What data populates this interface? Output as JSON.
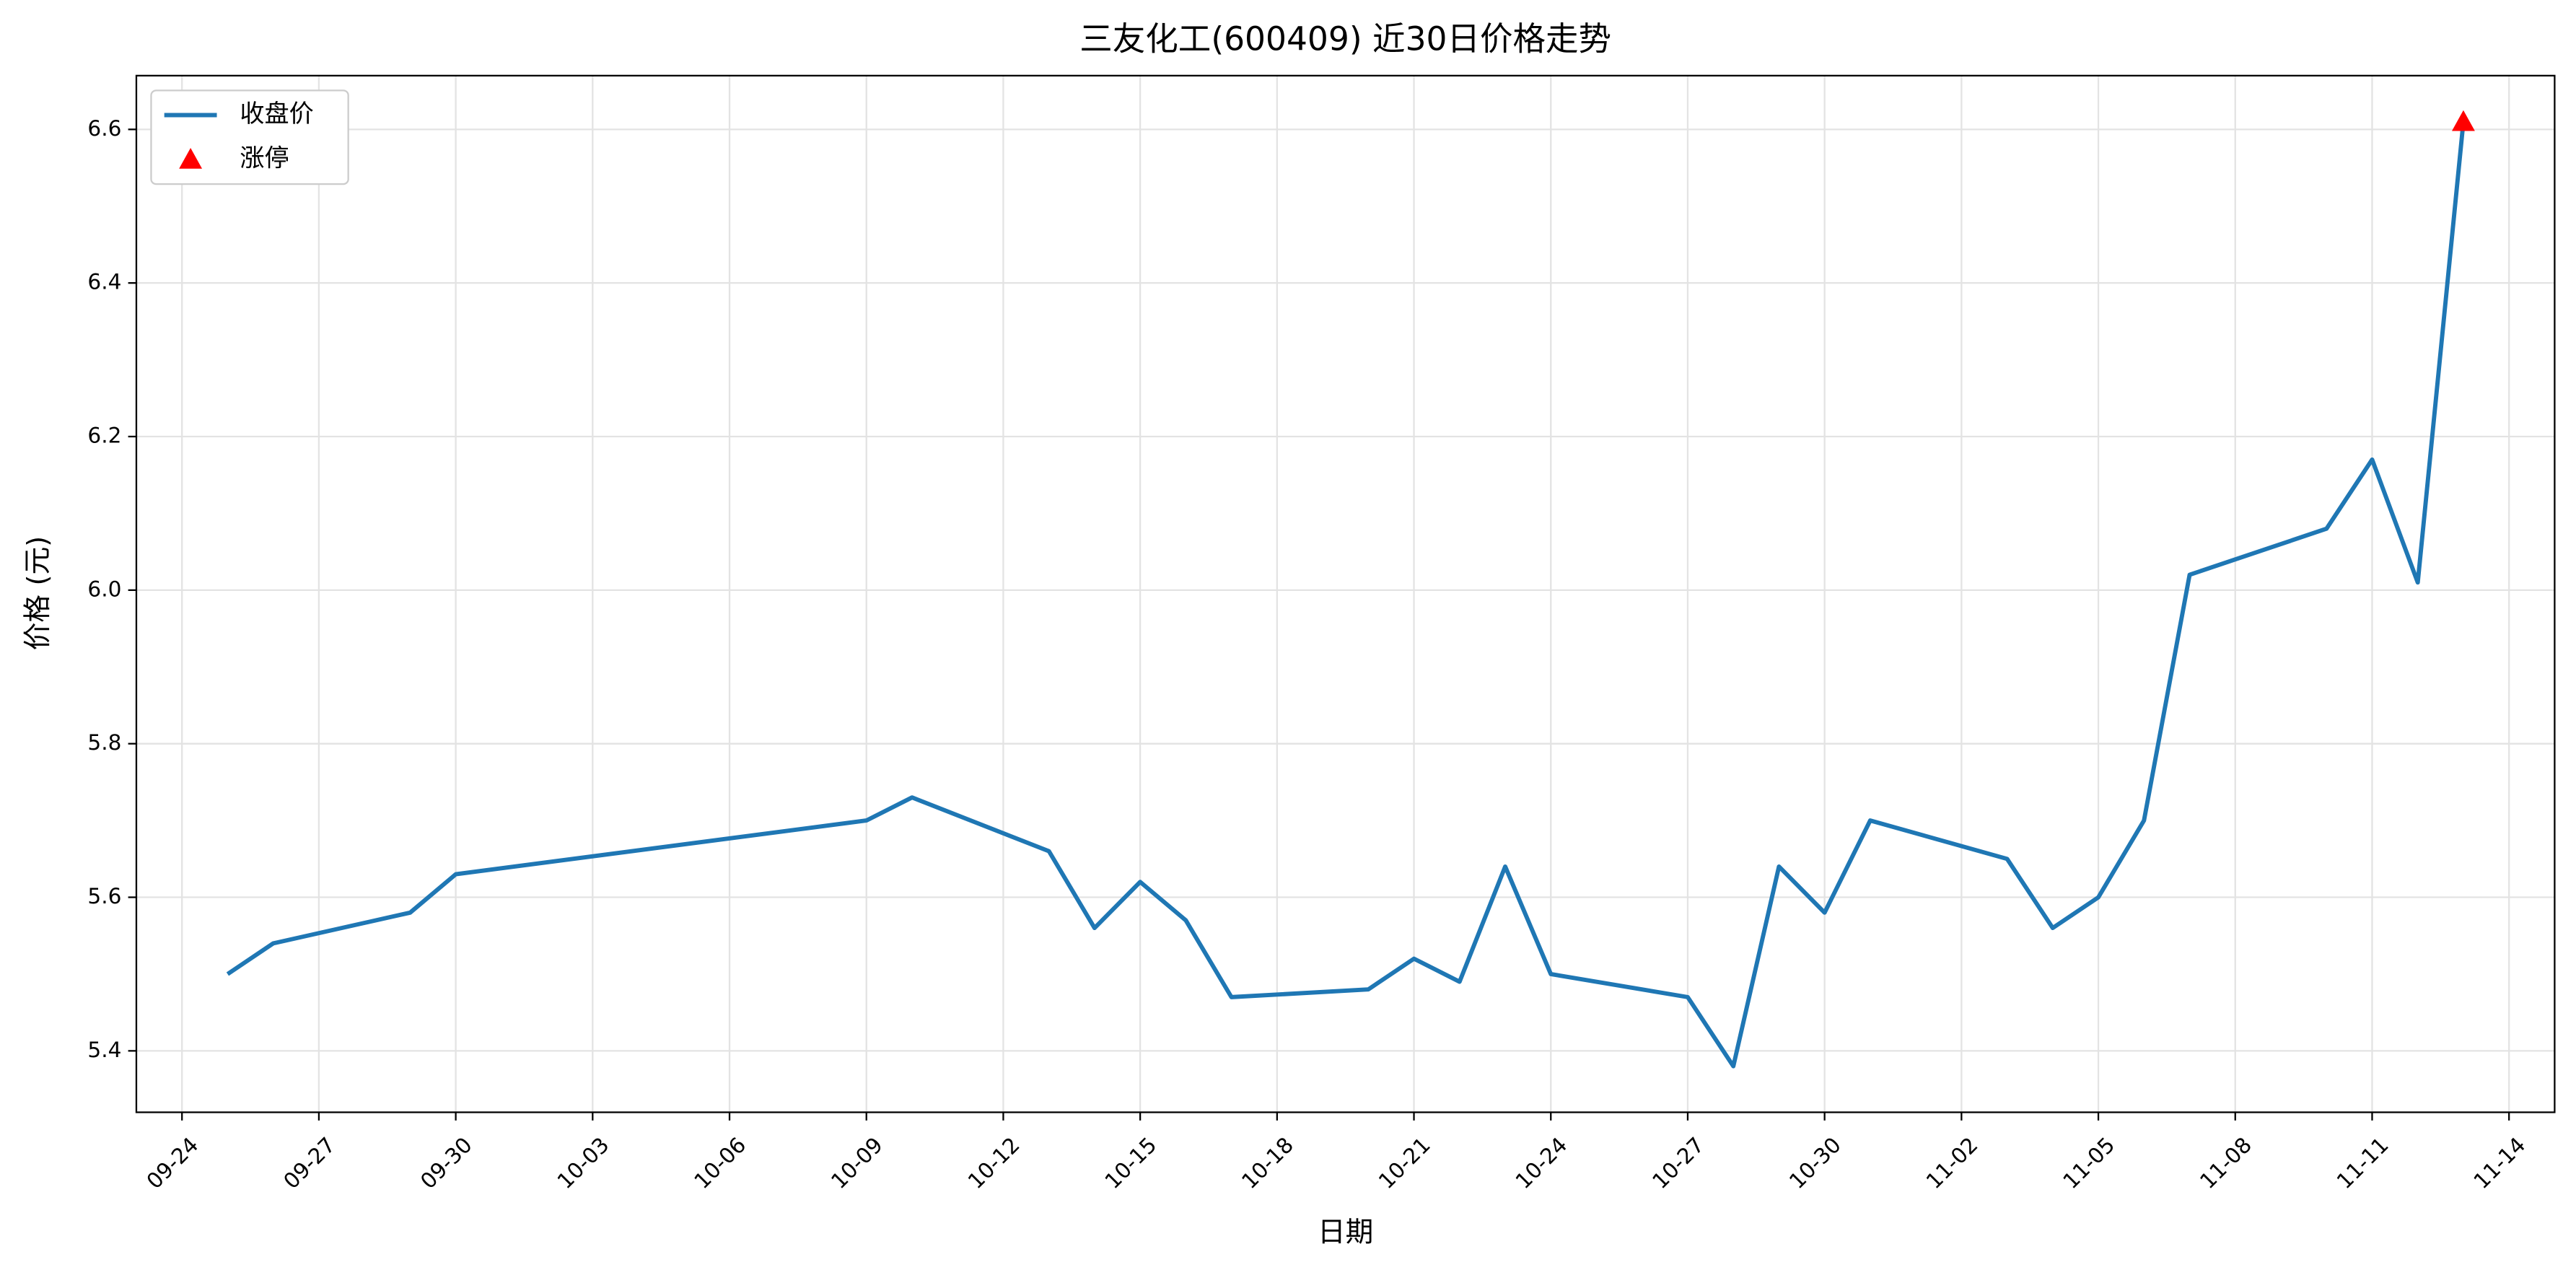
{
  "chart_data": {
    "type": "line",
    "title": "三友化工(600409) 近30日价格走势",
    "xlabel": "日期",
    "ylabel": "价格 (元)",
    "x": [
      "09-25",
      "09-26",
      "09-29",
      "09-30",
      "10-09",
      "10-10",
      "10-13",
      "10-14",
      "10-15",
      "10-16",
      "10-17",
      "10-20",
      "10-21",
      "10-22",
      "10-23",
      "10-24",
      "10-27",
      "10-28",
      "10-29",
      "10-30",
      "10-31",
      "11-03",
      "11-04",
      "11-05",
      "11-06",
      "11-07",
      "11-10",
      "11-11",
      "11-12",
      "11-13"
    ],
    "series": [
      {
        "name": "收盘价",
        "color": "#1f77b4",
        "values": [
          5.5,
          5.54,
          5.58,
          5.63,
          5.7,
          5.73,
          5.66,
          5.56,
          5.62,
          5.57,
          5.47,
          5.48,
          5.52,
          5.49,
          5.64,
          5.5,
          5.47,
          5.38,
          5.64,
          5.58,
          5.7,
          5.65,
          5.56,
          5.6,
          5.7,
          6.02,
          6.08,
          6.17,
          6.01,
          6.61
        ]
      },
      {
        "name": "涨停",
        "type": "scatter",
        "marker": "triangle",
        "color": "#ff0000",
        "x": [
          "11-13"
        ],
        "values": [
          6.61
        ]
      }
    ],
    "xlim": [
      "09-23",
      "11-15"
    ],
    "xticks": [
      "09-24",
      "09-27",
      "09-30",
      "10-03",
      "10-06",
      "10-09",
      "10-12",
      "10-15",
      "10-18",
      "10-21",
      "10-24",
      "10-27",
      "10-30",
      "11-02",
      "11-05",
      "11-08",
      "11-11",
      "11-14"
    ],
    "ylim": [
      5.32,
      6.67
    ],
    "yticks": [
      5.4,
      5.6,
      5.8,
      {
        "value": 6,
        "label": "6.0"
      },
      6.2,
      6.4,
      6.6
    ],
    "grid": true,
    "legend": "upper left"
  }
}
